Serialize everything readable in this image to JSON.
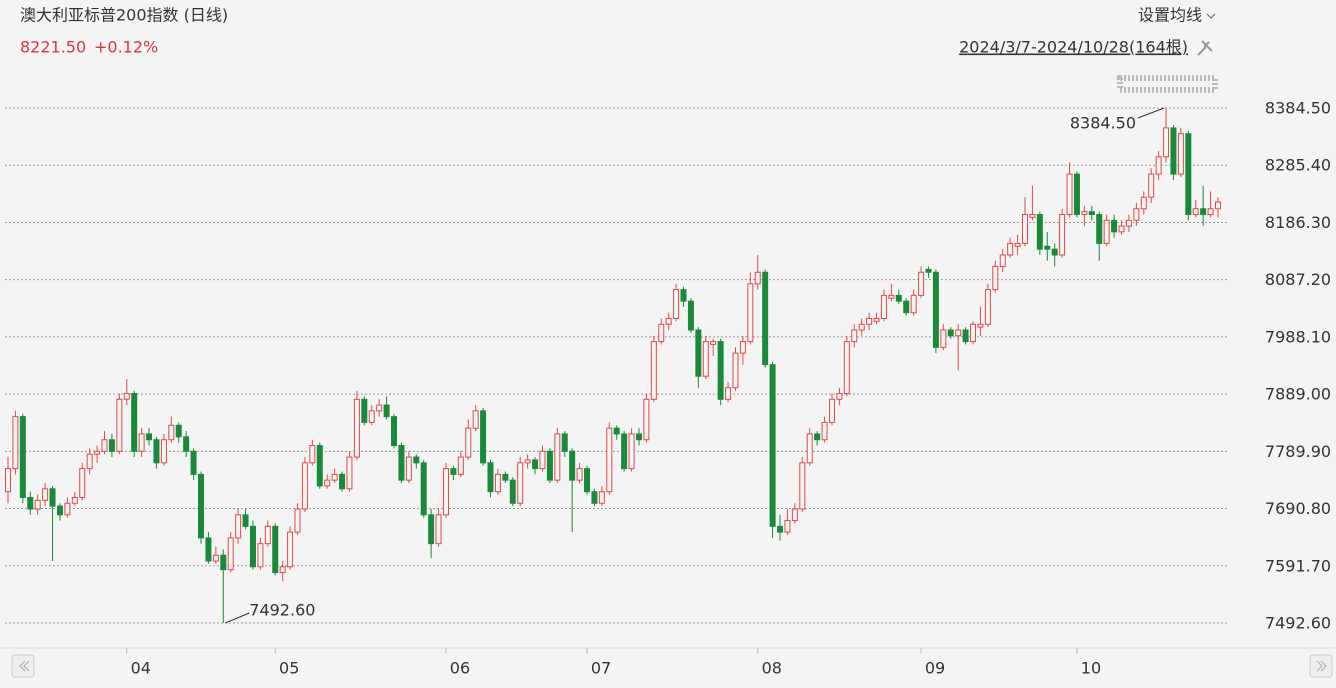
{
  "chart_data": {
    "type": "candlestick",
    "title": "澳大利亚标普200指数 (日线)",
    "price": "8221.50",
    "change": "+0.12%",
    "ma_button": "设置均线",
    "range": "2024/3/7-2024/10/28(164根)",
    "up_color": "#e0494a",
    "down_color": "#1a8a3a",
    "ylim": [
      7492.6,
      8384.5
    ],
    "yticks": [
      {
        "value": 8384.5,
        "label": "8384.50"
      },
      {
        "value": 8285.4,
        "label": "8285.40"
      },
      {
        "value": 8186.3,
        "label": "8186.30"
      },
      {
        "value": 8087.2,
        "label": "8087.20"
      },
      {
        "value": 7988.1,
        "label": "7988.10"
      },
      {
        "value": 7889,
        "label": "7889.00"
      },
      {
        "value": 7789.9,
        "label": "7789.90"
      },
      {
        "value": 7690.8,
        "label": "7690.80"
      },
      {
        "value": 7591.7,
        "label": "7591.70"
      },
      {
        "value": 7492.6,
        "label": "7492.60"
      }
    ],
    "grid": true,
    "annotations": [
      {
        "value": 8384.5,
        "label": "8384.50"
      },
      {
        "value": 7492.6,
        "label": "7492.60"
      }
    ],
    "categories": [
      null,
      null,
      null,
      null,
      null,
      null,
      null,
      null,
      null,
      null,
      null,
      null,
      null,
      null,
      null,
      null,
      "04",
      null,
      null,
      null,
      null,
      null,
      null,
      null,
      null,
      null,
      null,
      null,
      null,
      null,
      null,
      null,
      null,
      null,
      null,
      null,
      "05",
      null,
      null,
      null,
      null,
      null,
      null,
      null,
      null,
      null,
      null,
      null,
      null,
      null,
      null,
      null,
      null,
      null,
      null,
      null,
      null,
      null,
      null,
      "06",
      null,
      null,
      null,
      null,
      null,
      null,
      null,
      null,
      null,
      null,
      null,
      null,
      null,
      null,
      null,
      null,
      null,
      null,
      "07",
      null,
      null,
      null,
      null,
      null,
      null,
      null,
      null,
      null,
      null,
      null,
      null,
      null,
      null,
      null,
      null,
      null,
      null,
      null,
      null,
      null,
      null,
      "08",
      null,
      null,
      null,
      null,
      null,
      null,
      null,
      null,
      null,
      null,
      null,
      null,
      null,
      null,
      null,
      null,
      null,
      null,
      null,
      null,
      null,
      "09",
      null,
      null,
      null,
      null,
      null,
      null,
      null,
      null,
      null,
      null,
      null,
      null,
      null,
      null,
      null,
      null,
      null,
      null,
      null,
      null,
      "10",
      null,
      null,
      null,
      null,
      null,
      null,
      null,
      null,
      null,
      null,
      null,
      null,
      null,
      null,
      null,
      null,
      null,
      null,
      null
    ],
    "ohlc": [
      [
        7720,
        7780,
        7700,
        7760
      ],
      [
        7760,
        7860,
        7750,
        7850
      ],
      [
        7850,
        7855,
        7700,
        7710
      ],
      [
        7710,
        7720,
        7680,
        7690
      ],
      [
        7690,
        7715,
        7680,
        7705
      ],
      [
        7705,
        7735,
        7695,
        7725
      ],
      [
        7725,
        7730,
        7600,
        7695
      ],
      [
        7695,
        7700,
        7670,
        7680
      ],
      [
        7680,
        7710,
        7675,
        7700
      ],
      [
        7700,
        7720,
        7695,
        7710
      ],
      [
        7710,
        7770,
        7705,
        7760
      ],
      [
        7760,
        7795,
        7750,
        7785
      ],
      [
        7785,
        7800,
        7770,
        7790
      ],
      [
        7790,
        7825,
        7785,
        7810
      ],
      [
        7810,
        7820,
        7780,
        7790
      ],
      [
        7790,
        7890,
        7785,
        7880
      ],
      [
        7880,
        7915,
        7870,
        7890
      ],
      [
        7890,
        7895,
        7780,
        7790
      ],
      [
        7790,
        7830,
        7780,
        7820
      ],
      [
        7820,
        7830,
        7800,
        7810
      ],
      [
        7810,
        7815,
        7760,
        7770
      ],
      [
        7770,
        7820,
        7765,
        7810
      ],
      [
        7810,
        7850,
        7805,
        7835
      ],
      [
        7835,
        7840,
        7805,
        7815
      ],
      [
        7815,
        7825,
        7780,
        7790
      ],
      [
        7790,
        7795,
        7740,
        7750
      ],
      [
        7750,
        7755,
        7630,
        7640
      ],
      [
        7640,
        7650,
        7595,
        7600
      ],
      [
        7600,
        7625,
        7595,
        7610
      ],
      [
        7610,
        7620,
        7492.6,
        7585
      ],
      [
        7585,
        7650,
        7580,
        7640
      ],
      [
        7640,
        7690,
        7630,
        7680
      ],
      [
        7680,
        7690,
        7655,
        7660
      ],
      [
        7660,
        7670,
        7585,
        7590
      ],
      [
        7590,
        7640,
        7585,
        7630
      ],
      [
        7630,
        7670,
        7625,
        7660
      ],
      [
        7660,
        7665,
        7575,
        7580
      ],
      [
        7580,
        7600,
        7565,
        7590
      ],
      [
        7590,
        7660,
        7585,
        7650
      ],
      [
        7650,
        7700,
        7645,
        7690
      ],
      [
        7690,
        7780,
        7685,
        7770
      ],
      [
        7770,
        7810,
        7765,
        7800
      ],
      [
        7800,
        7805,
        7725,
        7730
      ],
      [
        7730,
        7750,
        7725,
        7740
      ],
      [
        7740,
        7760,
        7735,
        7750
      ],
      [
        7750,
        7755,
        7720,
        7725
      ],
      [
        7725,
        7790,
        7720,
        7780
      ],
      [
        7780,
        7895,
        7775,
        7880
      ],
      [
        7880,
        7885,
        7835,
        7840
      ],
      [
        7840,
        7870,
        7835,
        7860
      ],
      [
        7860,
        7880,
        7850,
        7870
      ],
      [
        7870,
        7885,
        7845,
        7850
      ],
      [
        7850,
        7855,
        7795,
        7800
      ],
      [
        7800,
        7805,
        7735,
        7740
      ],
      [
        7740,
        7790,
        7735,
        7780
      ],
      [
        7780,
        7785,
        7760,
        7770
      ],
      [
        7770,
        7775,
        7675,
        7680
      ],
      [
        7680,
        7690,
        7605,
        7630
      ],
      [
        7630,
        7690,
        7625,
        7680
      ],
      [
        7680,
        7770,
        7675,
        7760
      ],
      [
        7760,
        7765,
        7740,
        7750
      ],
      [
        7750,
        7790,
        7745,
        7780
      ],
      [
        7780,
        7845,
        7775,
        7830
      ],
      [
        7830,
        7870,
        7825,
        7860
      ],
      [
        7860,
        7865,
        7765,
        7770
      ],
      [
        7770,
        7775,
        7710,
        7720
      ],
      [
        7720,
        7760,
        7715,
        7750
      ],
      [
        7750,
        7755,
        7735,
        7740
      ],
      [
        7740,
        7745,
        7695,
        7700
      ],
      [
        7700,
        7780,
        7695,
        7770
      ],
      [
        7770,
        7785,
        7760,
        7775
      ],
      [
        7775,
        7780,
        7750,
        7760
      ],
      [
        7760,
        7800,
        7755,
        7790
      ],
      [
        7790,
        7795,
        7735,
        7740
      ],
      [
        7740,
        7830,
        7735,
        7820
      ],
      [
        7820,
        7825,
        7780,
        7790
      ],
      [
        7790,
        7795,
        7650,
        7740
      ],
      [
        7740,
        7770,
        7735,
        7760
      ],
      [
        7760,
        7765,
        7715,
        7720
      ],
      [
        7720,
        7725,
        7695,
        7700
      ],
      [
        7700,
        7730,
        7695,
        7720
      ],
      [
        7720,
        7840,
        7715,
        7830
      ],
      [
        7830,
        7835,
        7810,
        7820
      ],
      [
        7820,
        7825,
        7755,
        7760
      ],
      [
        7760,
        7830,
        7755,
        7820
      ],
      [
        7820,
        7830,
        7800,
        7810
      ],
      [
        7810,
        7890,
        7805,
        7880
      ],
      [
        7880,
        7990,
        7875,
        7980
      ],
      [
        7980,
        8020,
        7975,
        8010
      ],
      [
        8010,
        8030,
        8000,
        8020
      ],
      [
        8020,
        8080,
        8015,
        8070
      ],
      [
        8070,
        8075,
        8040,
        8050
      ],
      [
        8050,
        8055,
        7995,
        8000
      ],
      [
        8000,
        8005,
        7900,
        7920
      ],
      [
        7920,
        7990,
        7915,
        7980
      ],
      [
        7975,
        7985,
        7955,
        7980
      ],
      [
        7980,
        7985,
        7870,
        7880
      ],
      [
        7880,
        7910,
        7875,
        7900
      ],
      [
        7900,
        7970,
        7895,
        7960
      ],
      [
        7960,
        7990,
        7940,
        7980
      ],
      [
        7980,
        8100,
        7975,
        8080
      ],
      [
        8080,
        8130,
        8070,
        8100
      ],
      [
        8100,
        8105,
        7935,
        7940
      ],
      [
        7940,
        7945,
        7640,
        7660
      ],
      [
        7660,
        7680,
        7635,
        7650
      ],
      [
        7650,
        7690,
        7645,
        7670
      ],
      [
        7670,
        7700,
        7665,
        7690
      ],
      [
        7690,
        7780,
        7685,
        7770
      ],
      [
        7770,
        7830,
        7765,
        7820
      ],
      [
        7820,
        7825,
        7800,
        7810
      ],
      [
        7810,
        7850,
        7805,
        7840
      ],
      [
        7840,
        7890,
        7835,
        7880
      ],
      [
        7880,
        7900,
        7870,
        7890
      ],
      [
        7890,
        7990,
        7885,
        7980
      ],
      [
        7980,
        8010,
        7970,
        8000
      ],
      [
        8000,
        8020,
        7990,
        8010
      ],
      [
        8010,
        8030,
        8000,
        8020
      ],
      [
        8015,
        8030,
        8010,
        8020
      ],
      [
        8020,
        8070,
        8015,
        8060
      ],
      [
        8055,
        8080,
        8050,
        8060
      ],
      [
        8060,
        8070,
        8045,
        8050
      ],
      [
        8050,
        8055,
        8025,
        8030
      ],
      [
        8030,
        8070,
        8025,
        8060
      ],
      [
        8060,
        8110,
        8055,
        8100
      ],
      [
        8105,
        8110,
        8090,
        8100
      ],
      [
        8100,
        8105,
        7960,
        7970
      ],
      [
        7970,
        8010,
        7965,
        8000
      ],
      [
        8000,
        8005,
        7985,
        7990
      ],
      [
        7990,
        8010,
        7930,
        8000
      ],
      [
        8000,
        8005,
        7975,
        7980
      ],
      [
        7980,
        8015,
        7975,
        8010
      ],
      [
        8005,
        8040,
        7990,
        8010
      ],
      [
        8010,
        8080,
        8005,
        8070
      ],
      [
        8070,
        8120,
        8065,
        8110
      ],
      [
        8110,
        8140,
        8100,
        8130
      ],
      [
        8130,
        8160,
        8125,
        8150
      ],
      [
        8145,
        8165,
        8130,
        8150
      ],
      [
        8150,
        8230,
        8145,
        8200
      ],
      [
        8195,
        8250,
        8190,
        8200
      ],
      [
        8200,
        8205,
        8130,
        8140
      ],
      [
        8145,
        8170,
        8120,
        8140
      ],
      [
        8140,
        8150,
        8110,
        8130
      ],
      [
        8130,
        8210,
        8125,
        8200
      ],
      [
        8200,
        8290,
        8195,
        8270
      ],
      [
        8270,
        8275,
        8195,
        8200
      ],
      [
        8200,
        8215,
        8180,
        8205
      ],
      [
        8205,
        8215,
        8190,
        8200
      ],
      [
        8200,
        8205,
        8120,
        8150
      ],
      [
        8150,
        8200,
        8145,
        8190
      ],
      [
        8190,
        8200,
        8160,
        8170
      ],
      [
        8170,
        8190,
        8165,
        8180
      ],
      [
        8180,
        8200,
        8170,
        8190
      ],
      [
        8190,
        8220,
        8180,
        8210
      ],
      [
        8210,
        8240,
        8200,
        8230
      ],
      [
        8230,
        8280,
        8220,
        8270
      ],
      [
        8270,
        8310,
        8260,
        8300
      ],
      [
        8300,
        8384.5,
        8290,
        8350
      ],
      [
        8350,
        8355,
        8260,
        8270
      ],
      [
        8270,
        8350,
        8265,
        8340
      ],
      [
        8340,
        8345,
        8190,
        8200
      ],
      [
        8200,
        8225,
        8195,
        8210
      ],
      [
        8210,
        8250,
        8180,
        8200
      ],
      [
        8200,
        8240,
        8195,
        8210
      ],
      [
        8210,
        8230,
        8195,
        8221.5
      ]
    ]
  }
}
